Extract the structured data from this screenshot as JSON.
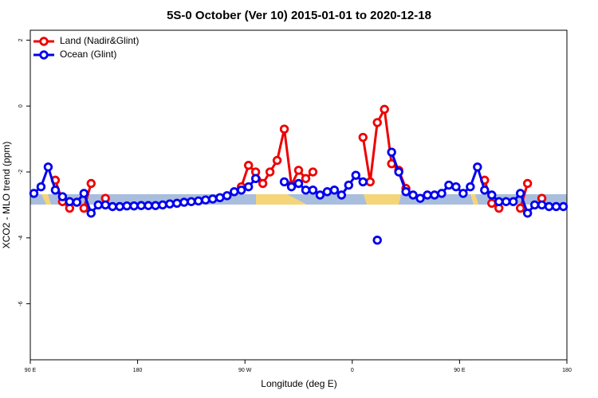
{
  "chart_data": {
    "type": "line",
    "title": "5S-0 October (Ver 10)   2015-01-01 to 2020-12-18",
    "x_label": "Longitude (deg E)",
    "y_label": "XCO2 - MLO trend (ppm)",
    "x": [
      93,
      99,
      105,
      111,
      117,
      123,
      129,
      135,
      141,
      147,
      153,
      159,
      165,
      171,
      177,
      183,
      189,
      195,
      201,
      207,
      213,
      219,
      225,
      231,
      237,
      243,
      249,
      255,
      261,
      267,
      273,
      279,
      285,
      291,
      297,
      303,
      309,
      315,
      321,
      327,
      333,
      339,
      345,
      351,
      357,
      363,
      369,
      375,
      381,
      387,
      393,
      399,
      405,
      411,
      417,
      423,
      429,
      435,
      441,
      447,
      453,
      459,
      465,
      471,
      477,
      483,
      489,
      495,
      501,
      507,
      513,
      519,
      525,
      531,
      537
    ],
    "series": [
      {
        "name": "Land (Nadir&Glint)",
        "color": "#ee0000",
        "values": [
          null,
          null,
          null,
          -2.25,
          -2.9,
          -3.1,
          null,
          -3.1,
          -2.35,
          null,
          -2.8,
          null,
          null,
          null,
          null,
          null,
          null,
          null,
          null,
          null,
          null,
          null,
          null,
          null,
          null,
          null,
          null,
          null,
          null,
          -2.45,
          -1.8,
          -2.0,
          -2.35,
          -2.0,
          -1.65,
          -0.7,
          -2.4,
          -1.95,
          -2.2,
          -2.0,
          null,
          null,
          null,
          null,
          null,
          null,
          -0.95,
          -2.3,
          -0.5,
          -0.1,
          -1.75,
          -1.95,
          -2.5,
          null,
          null,
          null,
          null,
          null,
          null,
          null,
          null,
          null,
          null,
          -2.25,
          -2.95,
          -3.1,
          null,
          null,
          -3.1,
          -2.35,
          null,
          -2.8,
          null,
          null,
          null
        ]
      },
      {
        "name": "Ocean (Glint)",
        "color": "#0000ee",
        "values": [
          -2.65,
          -2.45,
          -1.85,
          -2.55,
          -2.75,
          -2.9,
          -2.92,
          -2.65,
          -3.25,
          -3.0,
          -3.0,
          -3.05,
          -3.05,
          -3.03,
          -3.03,
          -3.02,
          -3.02,
          -3.02,
          -3.0,
          -2.97,
          -2.95,
          -2.92,
          -2.9,
          -2.88,
          -2.85,
          -2.82,
          -2.78,
          -2.72,
          -2.6,
          -2.55,
          -2.45,
          -2.2,
          null,
          null,
          null,
          -2.3,
          -2.45,
          -2.35,
          -2.55,
          -2.55,
          -2.7,
          -2.6,
          -2.55,
          -2.7,
          -2.4,
          -2.1,
          -2.3,
          null,
          -4.07,
          null,
          -1.4,
          -2.0,
          -2.6,
          -2.7,
          -2.8,
          -2.7,
          -2.7,
          -2.65,
          -2.4,
          -2.45,
          -2.65,
          -2.45,
          -1.85,
          -2.55,
          -2.7,
          -2.9,
          -2.9,
          -2.9,
          -2.65,
          -3.25,
          -3.0,
          -3.0,
          -3.05,
          -3.05,
          -3.05
        ]
      }
    ],
    "xlim": [
      90,
      540
    ],
    "xticks": [
      {
        "value": 90,
        "label": "90 E"
      },
      180,
      {
        "value": 270,
        "label": "90 W"
      },
      {
        "value": 360,
        "label": "0"
      },
      {
        "value": 450,
        "label": "90 E"
      },
      {
        "value": 540,
        "label": "180"
      }
    ],
    "ylim": [
      -7.7,
      2.3
    ],
    "yticks": [
      2,
      0,
      -2,
      -4,
      -6
    ],
    "legend": "top-left"
  }
}
